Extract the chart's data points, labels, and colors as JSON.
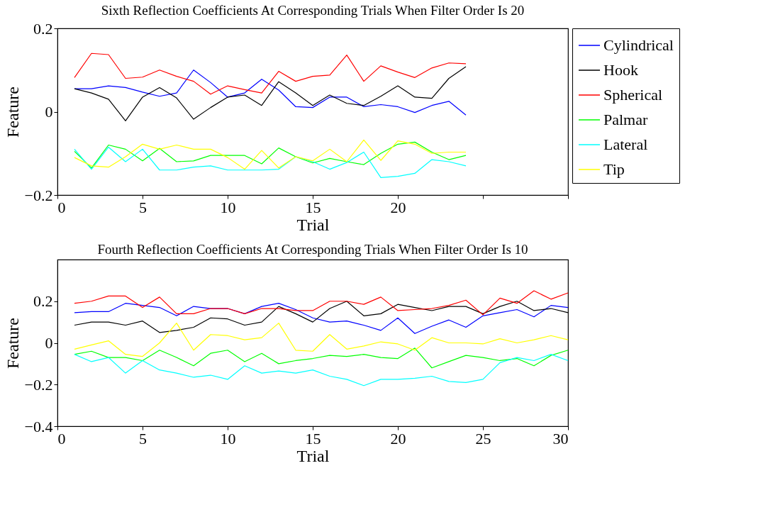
{
  "chart_data": [
    {
      "type": "line",
      "title": "Sixth Reflection Coefficients At Corresponding Trials When Filter Order Is 20",
      "xlabel": "Trial",
      "ylabel": "Feature",
      "x": [
        1,
        2,
        3,
        4,
        5,
        6,
        7,
        8,
        9,
        10,
        11,
        12,
        13,
        14,
        15,
        16,
        17,
        18,
        19,
        20,
        21,
        22,
        23,
        24
      ],
      "xlim": [
        0,
        30
      ],
      "xticks": [
        0,
        5,
        10,
        15,
        20,
        {
          "value": 25,
          "label": null
        },
        {
          "value": 30,
          "label": null
        }
      ],
      "ylim": [
        -0.2,
        0.2
      ],
      "yticks": [
        -0.2,
        0,
        0.2
      ],
      "grid": false,
      "legend": "right",
      "marker": "none",
      "line_style": "solid",
      "series": [
        {
          "name": "Cylindrical",
          "color": "#0000ff",
          "values": [
            0.055,
            0.055,
            0.062,
            0.058,
            0.047,
            0.037,
            0.045,
            0.1,
            0.07,
            0.035,
            0.045,
            0.078,
            0.052,
            0.012,
            0.01,
            0.035,
            0.035,
            0.012,
            0.017,
            0.012,
            -0.002,
            0.015,
            0.025,
            -0.008
          ]
        },
        {
          "name": "Hook",
          "color": "#000000",
          "values": [
            0.055,
            0.045,
            0.03,
            -0.022,
            0.035,
            0.058,
            0.033,
            -0.018,
            0.01,
            0.035,
            0.04,
            0.015,
            0.072,
            0.045,
            0.015,
            0.04,
            0.02,
            0.015,
            0.037,
            0.062,
            0.035,
            0.032,
            0.08,
            0.108
          ]
        },
        {
          "name": "Spherical",
          "color": "#ff0000",
          "values": [
            0.082,
            0.14,
            0.137,
            0.08,
            0.083,
            0.1,
            0.085,
            0.073,
            0.042,
            0.062,
            0.053,
            0.045,
            0.097,
            0.073,
            0.085,
            0.088,
            0.136,
            0.073,
            0.11,
            0.095,
            0.082,
            0.105,
            0.117,
            0.115
          ]
        },
        {
          "name": "Palmar",
          "color": "#00ff00",
          "values": [
            -0.095,
            -0.135,
            -0.08,
            -0.09,
            -0.118,
            -0.088,
            -0.12,
            -0.118,
            -0.105,
            -0.105,
            -0.105,
            -0.125,
            -0.087,
            -0.108,
            -0.123,
            -0.112,
            -0.12,
            -0.127,
            -0.1,
            -0.078,
            -0.073,
            -0.097,
            -0.115,
            -0.105
          ]
        },
        {
          "name": "Lateral",
          "color": "#00ffff",
          "values": [
            -0.09,
            -0.138,
            -0.085,
            -0.12,
            -0.09,
            -0.14,
            -0.14,
            -0.133,
            -0.13,
            -0.14,
            -0.14,
            -0.14,
            -0.138,
            -0.108,
            -0.12,
            -0.138,
            -0.122,
            -0.097,
            -0.158,
            -0.155,
            -0.148,
            -0.115,
            -0.12,
            -0.13
          ]
        },
        {
          "name": "Tip",
          "color": "#ffff00",
          "values": [
            -0.11,
            -0.13,
            -0.133,
            -0.108,
            -0.078,
            -0.09,
            -0.08,
            -0.09,
            -0.09,
            -0.11,
            -0.138,
            -0.093,
            -0.135,
            -0.108,
            -0.118,
            -0.09,
            -0.12,
            -0.068,
            -0.117,
            -0.07,
            -0.078,
            -0.1,
            -0.097,
            -0.097
          ]
        }
      ]
    },
    {
      "type": "line",
      "title": "Fourth Reflection Coefficients At Corresponding Trials When Filter Order Is 10",
      "xlabel": "Trial",
      "ylabel": "Feature",
      "x": [
        1,
        2,
        3,
        4,
        5,
        6,
        7,
        8,
        9,
        10,
        11,
        12,
        13,
        14,
        15,
        16,
        17,
        18,
        19,
        20,
        21,
        22,
        23,
        24,
        25,
        26,
        27,
        28,
        29,
        30
      ],
      "xlim": [
        0,
        30
      ],
      "xticks": [
        0,
        5,
        10,
        15,
        20,
        25,
        30
      ],
      "ylim": [
        -0.4,
        0.4
      ],
      "yticks": [
        -0.4,
        -0.2,
        0,
        0.2
      ],
      "grid": false,
      "marker": "none",
      "line_style": "solid",
      "series": [
        {
          "color": "#0000ff",
          "values": [
            0.145,
            0.15,
            0.15,
            0.19,
            0.18,
            0.17,
            0.13,
            0.175,
            0.165,
            0.165,
            0.14,
            0.175,
            0.19,
            0.16,
            0.12,
            0.1,
            0.105,
            0.085,
            0.06,
            0.12,
            0.045,
            0.08,
            0.11,
            0.075,
            0.13,
            0.145,
            0.16,
            0.125,
            0.18,
            0.17
          ]
        },
        {
          "color": "#000000",
          "values": [
            0.085,
            0.1,
            0.1,
            0.085,
            0.105,
            0.05,
            0.06,
            0.075,
            0.12,
            0.115,
            0.085,
            0.1,
            0.175,
            0.14,
            0.1,
            0.165,
            0.2,
            0.13,
            0.14,
            0.185,
            0.17,
            0.155,
            0.175,
            0.175,
            0.14,
            0.175,
            0.2,
            0.155,
            0.165,
            0.145
          ]
        },
        {
          "color": "#ff0000",
          "values": [
            0.19,
            0.2,
            0.225,
            0.225,
            0.17,
            0.22,
            0.14,
            0.14,
            0.165,
            0.165,
            0.14,
            0.165,
            0.165,
            0.155,
            0.155,
            0.2,
            0.2,
            0.185,
            0.22,
            0.155,
            0.16,
            0.165,
            0.18,
            0.205,
            0.135,
            0.215,
            0.19,
            0.25,
            0.21,
            0.24
          ]
        },
        {
          "color": "#00ff00",
          "values": [
            -0.055,
            -0.04,
            -0.07,
            -0.07,
            -0.085,
            -0.035,
            -0.07,
            -0.11,
            -0.05,
            -0.035,
            -0.09,
            -0.05,
            -0.1,
            -0.085,
            -0.075,
            -0.06,
            -0.065,
            -0.055,
            -0.07,
            -0.075,
            -0.025,
            -0.12,
            -0.09,
            -0.06,
            -0.07,
            -0.085,
            -0.075,
            -0.11,
            -0.06,
            -0.035
          ]
        },
        {
          "color": "#00ffff",
          "values": [
            -0.055,
            -0.09,
            -0.07,
            -0.145,
            -0.085,
            -0.13,
            -0.145,
            -0.165,
            -0.155,
            -0.175,
            -0.11,
            -0.145,
            -0.135,
            -0.145,
            -0.13,
            -0.16,
            -0.175,
            -0.205,
            -0.175,
            -0.175,
            -0.17,
            -0.16,
            -0.185,
            -0.19,
            -0.175,
            -0.095,
            -0.07,
            -0.085,
            -0.055,
            -0.085
          ]
        },
        {
          "color": "#ffff00",
          "values": [
            -0.03,
            -0.01,
            0.01,
            -0.055,
            -0.065,
            0.0,
            0.095,
            -0.035,
            0.04,
            0.035,
            0.015,
            0.025,
            0.095,
            -0.035,
            -0.04,
            0.04,
            -0.03,
            -0.015,
            0.005,
            -0.005,
            -0.035,
            0.025,
            0.0,
            0.0,
            -0.005,
            0.02,
            0.0,
            0.015,
            0.035,
            0.015
          ]
        }
      ]
    }
  ]
}
